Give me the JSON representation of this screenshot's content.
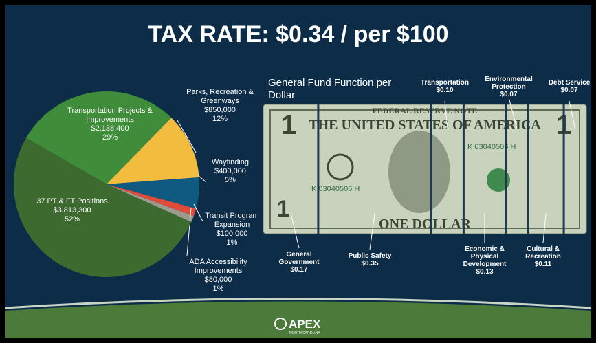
{
  "title": "TAX RATE: $0.34 / per $100",
  "chart_data": {
    "type": "pie",
    "categories": [
      "Transportation Projects & Improvements",
      "Parks, Recreation & Greenways",
      "Wayfinding",
      "Transit Program Expansion",
      "ADA Accessibility Improvements",
      "37 PT & FT Positions"
    ],
    "values": [
      2138400,
      850000,
      400000,
      100000,
      80000,
      3813300
    ],
    "value_labels": [
      "$2,138,400",
      "$850,000",
      "$400,000",
      "$100,000",
      "$80,000",
      "$3,813,300"
    ],
    "percent_labels": [
      "29%",
      "12%",
      "5%",
      "1%",
      "1%",
      "52%"
    ],
    "colors": [
      "#3f8d3a",
      "#f2bc3f",
      "#0f5a80",
      "#e04a3a",
      "#9c9a8c",
      "#3c6a2f"
    ]
  },
  "dollar": {
    "title": "General Fund Function per Dollar",
    "bill_texts": [
      "FEDERAL RESERVE NOTE",
      "THE UNITED STATES OF AMERICA",
      "ONE DOLLAR",
      "K 03040506 H"
    ],
    "functions": [
      {
        "name": "General Government",
        "value": 0.17,
        "label": "$0.17"
      },
      {
        "name": "Public Safety",
        "value": 0.35,
        "label": "$0.35"
      },
      {
        "name": "Transportation",
        "value": 0.1,
        "label": "$0.10"
      },
      {
        "name": "Economic & Physical Development",
        "value": 0.13,
        "label": "$0.13"
      },
      {
        "name": "Environmental Protection",
        "value": 0.07,
        "label": "$0.07"
      },
      {
        "name": "Cultural & Recreation",
        "value": 0.11,
        "label": "$0.11"
      },
      {
        "name": "Debt Service",
        "value": 0.07,
        "label": "$0.07"
      }
    ]
  },
  "logo": {
    "name": "APEX",
    "sub": "NORTH CAROLINA"
  }
}
